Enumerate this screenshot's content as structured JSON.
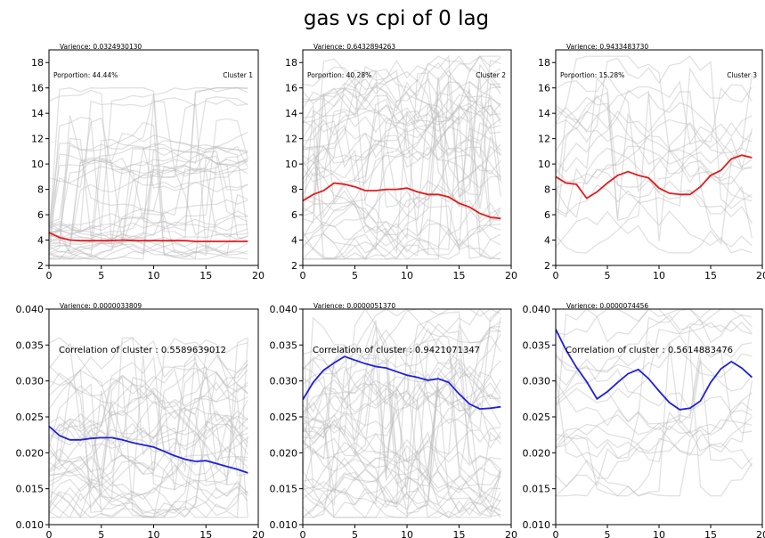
{
  "figure": {
    "title": "gas vs cpi of 0 lag"
  },
  "colors": {
    "background_lines": "#bdbdbd",
    "top_mean": "#e41a1c",
    "bottom_mean": "#1f1fdf",
    "axis": "#000000"
  },
  "chart_data": [
    {
      "type": "line",
      "row": "top",
      "col": 1,
      "ylim": [
        2,
        19
      ],
      "yticks": [
        2,
        4,
        6,
        8,
        10,
        12,
        14,
        16,
        18
      ],
      "xlim": [
        0,
        20
      ],
      "xticks": [
        0,
        5,
        10,
        15,
        20
      ],
      "labels": {
        "variance": "Varience: 0.0324930130",
        "proportion": "Porportion: 44.44%",
        "cluster": "Cluster 1"
      },
      "series": [
        {
          "values": [
            4.6,
            4.2,
            4.0,
            3.95,
            3.95,
            3.95,
            3.95,
            4.0,
            3.95,
            3.95,
            3.95,
            3.95,
            3.95,
            3.95,
            3.9,
            3.9,
            3.9,
            3.9,
            3.9,
            3.9
          ]
        }
      ],
      "background": {
        "count": 35,
        "min": 2.5,
        "max": 8.0,
        "spike": 16.0
      }
    },
    {
      "type": "line",
      "row": "top",
      "col": 2,
      "ylim": [
        2,
        19
      ],
      "yticks": [
        2,
        4,
        6,
        8,
        10,
        12,
        14,
        16,
        18
      ],
      "xlim": [
        0,
        20
      ],
      "xticks": [
        0,
        5,
        10,
        15,
        20
      ],
      "labels": {
        "variance": "Varience: 0.6432894263",
        "proportion": "Porportion: 40.28%",
        "cluster": "Cluster 2"
      },
      "series": [
        {
          "values": [
            7.1,
            7.6,
            7.9,
            8.5,
            8.4,
            8.2,
            7.9,
            7.9,
            8.0,
            8.0,
            8.1,
            7.8,
            7.6,
            7.6,
            7.4,
            6.9,
            6.6,
            6.1,
            5.8,
            5.7
          ]
        }
      ],
      "background": {
        "count": 40,
        "min": 2.5,
        "max": 18.5,
        "spike": 18.5
      }
    },
    {
      "type": "line",
      "row": "top",
      "col": 3,
      "ylim": [
        2,
        19
      ],
      "yticks": [
        2,
        4,
        6,
        8,
        10,
        12,
        14,
        16,
        18
      ],
      "xlim": [
        0,
        20
      ],
      "xticks": [
        0,
        5,
        10,
        15,
        20
      ],
      "labels": {
        "variance": "Varience: 0.9433483730",
        "proportion": "Porportion: 15.28%",
        "cluster": "Cluster 3"
      },
      "series": [
        {
          "values": [
            9.0,
            8.5,
            8.4,
            7.3,
            7.8,
            8.5,
            9.1,
            9.4,
            9.1,
            8.9,
            8.1,
            7.7,
            7.6,
            7.6,
            8.2,
            9.1,
            9.5,
            10.4,
            10.7,
            10.5
          ]
        }
      ],
      "background": {
        "count": 18,
        "min": 3.0,
        "max": 18.5,
        "spike": 18.5
      }
    },
    {
      "type": "line",
      "row": "bottom",
      "col": 1,
      "ylim": [
        0.01,
        0.04
      ],
      "yticks": [
        0.01,
        0.015,
        0.02,
        0.025,
        0.03,
        0.035,
        0.04
      ],
      "xlim": [
        0,
        20
      ],
      "xticks": [
        0,
        5,
        10,
        15,
        20
      ],
      "labels": {
        "variance": "Varience: 0.0000033809",
        "correlation": "Correlation of cluster : 0.5589639012"
      },
      "series": [
        {
          "values": [
            0.0237,
            0.0224,
            0.0218,
            0.0218,
            0.022,
            0.0221,
            0.0221,
            0.0218,
            0.0214,
            0.0211,
            0.0208,
            0.0202,
            0.0196,
            0.0191,
            0.0188,
            0.0189,
            0.0185,
            0.0181,
            0.0177,
            0.0172
          ]
        }
      ],
      "background": {
        "count": 35,
        "min": 0.011,
        "max": 0.036,
        "spike": 0.036
      }
    },
    {
      "type": "line",
      "row": "bottom",
      "col": 2,
      "ylim": [
        0.01,
        0.04
      ],
      "yticks": [
        0.01,
        0.015,
        0.02,
        0.025,
        0.03,
        0.035,
        0.04
      ],
      "xlim": [
        0,
        20
      ],
      "xticks": [
        0,
        5,
        10,
        15,
        20
      ],
      "labels": {
        "variance": "Varience: 0.0000051370",
        "correlation": "Correlation of cluster : 0.9421071347"
      },
      "series": [
        {
          "values": [
            0.0274,
            0.0298,
            0.0315,
            0.0325,
            0.0334,
            0.0329,
            0.0324,
            0.032,
            0.0318,
            0.0313,
            0.0308,
            0.0305,
            0.0301,
            0.0303,
            0.0298,
            0.0282,
            0.0268,
            0.0261,
            0.0262,
            0.0264
          ]
        }
      ],
      "background": {
        "count": 40,
        "min": 0.011,
        "max": 0.04,
        "spike": 0.04
      }
    },
    {
      "type": "line",
      "row": "bottom",
      "col": 3,
      "ylim": [
        0.01,
        0.04
      ],
      "yticks": [
        0.01,
        0.015,
        0.02,
        0.025,
        0.03,
        0.035,
        0.04
      ],
      "xlim": [
        0,
        20
      ],
      "xticks": [
        0,
        5,
        10,
        15,
        20
      ],
      "labels": {
        "variance": "Varience: 0.0000074456",
        "correlation": "Correlation of cluster : 0.5614883476"
      },
      "series": [
        {
          "values": [
            0.0372,
            0.0343,
            0.0319,
            0.0299,
            0.0275,
            0.0285,
            0.0298,
            0.031,
            0.0316,
            0.0303,
            0.0286,
            0.027,
            0.026,
            0.0262,
            0.0272,
            0.0298,
            0.0317,
            0.0327,
            0.0318,
            0.0305
          ]
        }
      ],
      "background": {
        "count": 18,
        "min": 0.014,
        "max": 0.04,
        "spike": 0.04
      }
    }
  ]
}
